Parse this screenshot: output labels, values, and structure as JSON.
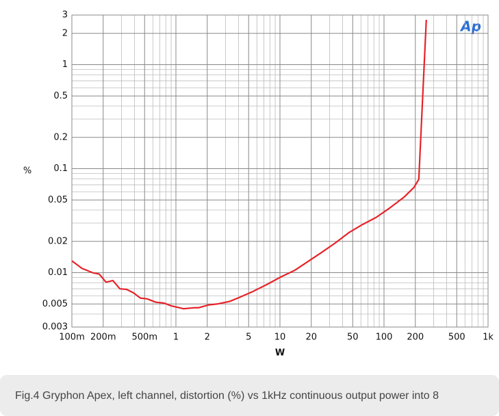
{
  "chart_data": {
    "type": "line",
    "logo": "Ap",
    "xlabel": "W",
    "ylabel": "%",
    "log_x": true,
    "log_y": true,
    "grid": true,
    "xlim": [
      0.1,
      1000
    ],
    "ylim": [
      0.003,
      3
    ],
    "xticks": [
      {
        "value": 0.1,
        "label": "100m"
      },
      {
        "value": 0.2,
        "label": "200m"
      },
      {
        "value": 0.5,
        "label": "500m"
      },
      1,
      2,
      5,
      10,
      20,
      50,
      100,
      200,
      500,
      {
        "value": 1000,
        "label": "1k"
      }
    ],
    "yticks": [
      0.003,
      0.005,
      0.01,
      0.02,
      0.05,
      0.1,
      0.2,
      0.5,
      1,
      2,
      3
    ],
    "x_minor_grid": [
      0.3,
      0.4,
      0.6,
      0.7,
      0.8,
      0.9,
      3,
      4,
      6,
      7,
      8,
      9,
      30,
      40,
      60,
      70,
      80,
      90,
      300,
      400,
      600,
      700,
      800,
      900
    ],
    "y_minor_grid": [
      0.004,
      0.006,
      0.007,
      0.008,
      0.009,
      0.03,
      0.04,
      0.06,
      0.07,
      0.08,
      0.09,
      0.3,
      0.4,
      0.6,
      0.7,
      0.8,
      0.9
    ],
    "series": [
      {
        "name": "Left channel",
        "color": "#e62228",
        "x": [
          0.1,
          0.125,
          0.158,
          0.183,
          0.213,
          0.248,
          0.289,
          0.336,
          0.391,
          0.455,
          0.53,
          0.64,
          0.77,
          0.9,
          1.18,
          1.5,
          1.65,
          2.07,
          2.5,
          3.3,
          4.1,
          5.5,
          7.5,
          10.2,
          13.8,
          18.6,
          25,
          34,
          46,
          62,
          84,
          114,
          155,
          194,
          216,
          255
        ],
        "values": [
          0.013,
          0.011,
          0.01,
          0.0097,
          0.0081,
          0.0084,
          0.007,
          0.0069,
          0.0064,
          0.0057,
          0.0056,
          0.0052,
          0.0051,
          0.0048,
          0.0045,
          0.0046,
          0.0046,
          0.0049,
          0.005,
          0.0053,
          0.0058,
          0.0066,
          0.0077,
          0.0091,
          0.0105,
          0.0128,
          0.0156,
          0.0193,
          0.0243,
          0.029,
          0.034,
          0.042,
          0.053,
          0.066,
          0.079,
          2.7
        ]
      }
    ]
  },
  "caption": "Fig.4 Gryphon Apex, left channel, distortion (%) vs 1kHz continuous output power into 8"
}
